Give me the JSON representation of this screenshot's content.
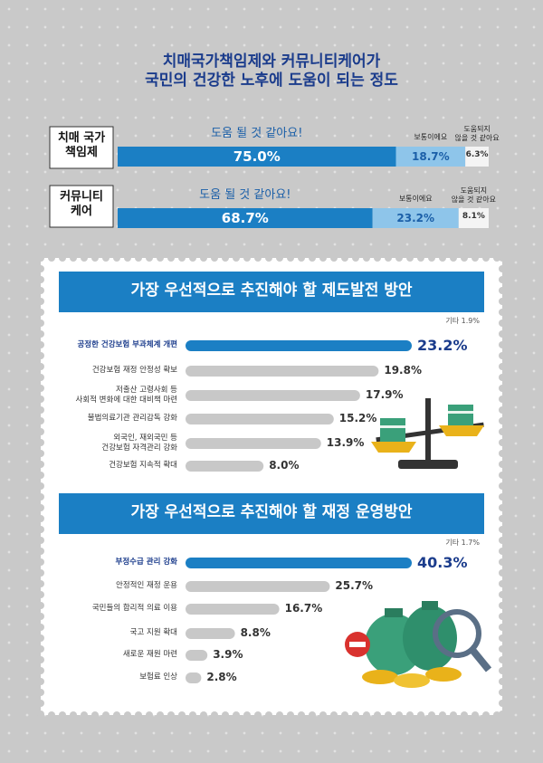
{
  "chart_data": [
    {
      "type": "stacked_bar",
      "title": "치매국가책임제와 커뮤니티케어가\n국민의 건강한 노후에 도움이 되는 정도",
      "categories": [
        "치매 국가\n책임제",
        "커뮤니티\n케어"
      ],
      "series": [
        {
          "name": "도움 될 것 같아요!",
          "color": "#1b7fc4",
          "values": [
            75.0,
            68.7
          ],
          "value_labels": [
            "75.0%",
            "68.7%"
          ]
        },
        {
          "name": "보통이에요",
          "color": "#8ec5ea",
          "values": [
            18.7,
            23.2
          ],
          "value_labels": [
            "18.7%",
            "23.2%"
          ]
        },
        {
          "name": "도움되지\n않을 것 같아요",
          "color": "#f4f4f4",
          "values": [
            6.3,
            8.1
          ],
          "value_labels": [
            "6.3%",
            "8.1%"
          ]
        }
      ]
    },
    {
      "type": "hbar",
      "title": "가장 우선적으로 추진해야 할 제도발전 방안",
      "annotation": "기타 1.9%",
      "categories": [
        "공정한 건강보험 부과체계 개편",
        "건강보험 재정 안정성 확보",
        "저출산 고령사회 등\n사회적 변화에 대한 대비책 마련",
        "불법의료기관 관리감독 강화",
        "외국인, 재외국민 등\n건강보험 자격관리 강화",
        "건강보험 지속적 확대"
      ],
      "values": [
        23.2,
        19.8,
        17.9,
        15.2,
        13.9,
        8.0
      ],
      "value_labels": [
        "23.2%",
        "19.8%",
        "17.9%",
        "15.2%",
        "13.9%",
        "8.0%"
      ],
      "colors": [
        "#1b7fc4",
        "#c8c8c8",
        "#c8c8c8",
        "#c8c8c8",
        "#c8c8c8",
        "#c8c8c8"
      ]
    },
    {
      "type": "hbar",
      "title": "가장 우선적으로 추진해야 할 재정 운영방안",
      "annotation": "기타 1.7%",
      "categories": [
        "부정수급 관리 강화",
        "안정적인 재정 운용",
        "국민들의 합리적 의료 이용",
        "국고 지원 확대",
        "새로운 재원 마련",
        "보험료 인상"
      ],
      "values": [
        40.3,
        25.7,
        16.7,
        8.8,
        3.9,
        2.8
      ],
      "value_labels": [
        "40.3%",
        "25.7%",
        "16.7%",
        "8.8%",
        "3.9%",
        "2.8%"
      ],
      "colors": [
        "#1b7fc4",
        "#c8c8c8",
        "#c8c8c8",
        "#c8c8c8",
        "#c8c8c8",
        "#c8c8c8"
      ]
    }
  ]
}
